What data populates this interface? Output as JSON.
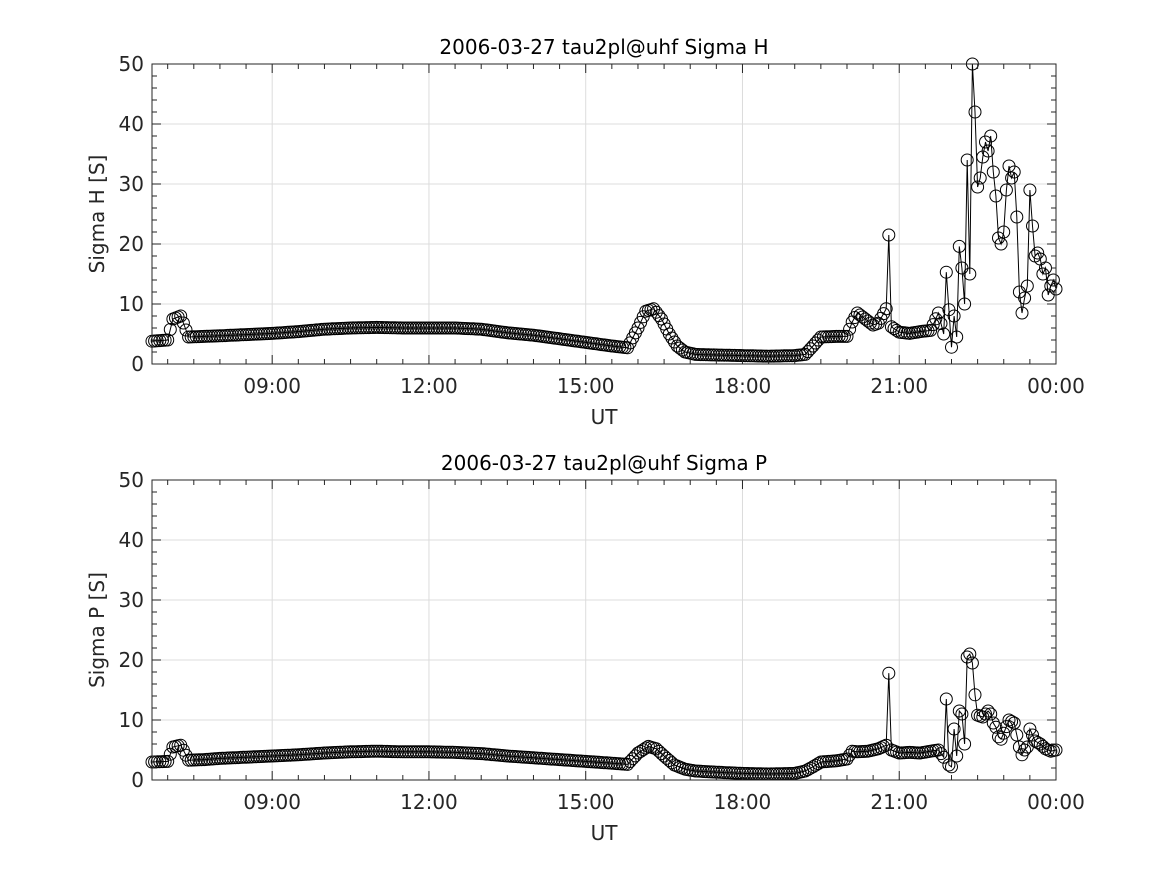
{
  "figure": {
    "background": "#ffffff",
    "axis_color": "#262626",
    "grid_color": "#dcdcdc",
    "marker_color": "#000000"
  },
  "chart_data": [
    {
      "type": "line",
      "title": "2006-03-27  tau2pl@uhf Sigma H",
      "xlabel": "UT",
      "ylabel": "Sigma H [S]",
      "xlim": [
        6.7,
        24.0
      ],
      "ylim": [
        0,
        50
      ],
      "xticks": [
        9,
        12,
        15,
        18,
        21,
        24
      ],
      "xtick_labels": [
        "09:00",
        "12:00",
        "15:00",
        "18:00",
        "21:00",
        "00:00"
      ],
      "yticks": [
        0,
        10,
        20,
        30,
        40,
        50
      ],
      "ytick_labels": [
        "0",
        "10",
        "20",
        "30",
        "40",
        "50"
      ],
      "grid": true,
      "marker": "open-circle",
      "series": [
        {
          "curve": [
            [
              6.7,
              3.8
            ],
            [
              7.0,
              4.0
            ],
            [
              7.1,
              7.5
            ],
            [
              7.25,
              8.0
            ],
            [
              7.4,
              4.5
            ],
            [
              7.7,
              4.6
            ],
            [
              8.0,
              4.7
            ],
            [
              8.5,
              4.9
            ],
            [
              9.0,
              5.1
            ],
            [
              9.5,
              5.4
            ],
            [
              10.0,
              5.8
            ],
            [
              10.5,
              6.0
            ],
            [
              11.0,
              6.1
            ],
            [
              11.5,
              6.0
            ],
            [
              12.0,
              6.0
            ],
            [
              12.5,
              6.0
            ],
            [
              13.0,
              5.8
            ],
            [
              13.5,
              5.2
            ],
            [
              14.0,
              4.8
            ],
            [
              14.5,
              4.2
            ],
            [
              15.0,
              3.6
            ],
            [
              15.5,
              3.0
            ],
            [
              15.8,
              2.7
            ],
            [
              16.0,
              6.0
            ],
            [
              16.15,
              8.8
            ],
            [
              16.3,
              9.2
            ],
            [
              16.45,
              7.5
            ],
            [
              16.6,
              5.0
            ],
            [
              16.75,
              3.0
            ],
            [
              16.9,
              2.0
            ],
            [
              17.1,
              1.6
            ],
            [
              17.5,
              1.5
            ],
            [
              18.0,
              1.4
            ],
            [
              18.5,
              1.3
            ],
            [
              19.0,
              1.4
            ],
            [
              19.2,
              1.6
            ],
            [
              19.35,
              3.0
            ],
            [
              19.5,
              4.5
            ],
            [
              19.8,
              4.6
            ],
            [
              20.0,
              4.6
            ],
            [
              20.1,
              7.0
            ],
            [
              20.2,
              8.5
            ],
            [
              20.35,
              7.5
            ],
            [
              20.5,
              6.5
            ],
            [
              20.6,
              6.8
            ],
            [
              20.75,
              9.2
            ],
            [
              20.8,
              21.5
            ],
            [
              20.85,
              6.2
            ],
            [
              21.0,
              5.3
            ],
            [
              21.2,
              5.1
            ],
            [
              21.4,
              5.4
            ],
            [
              21.6,
              5.6
            ],
            [
              21.75,
              8.5
            ],
            [
              21.85,
              5.0
            ],
            [
              21.9,
              15.3
            ],
            [
              22.0,
              2.8
            ],
            [
              22.05,
              8.0
            ],
            [
              22.1,
              4.5
            ],
            [
              22.15,
              19.6
            ],
            [
              22.2,
              16.0
            ],
            [
              22.25,
              10.0
            ],
            [
              22.3,
              34.0
            ],
            [
              22.35,
              15.0
            ],
            [
              22.4,
              50.0
            ],
            [
              22.45,
              42.0
            ],
            [
              22.5,
              29.5
            ],
            [
              22.55,
              31.0
            ],
            [
              22.6,
              34.5
            ],
            [
              22.65,
              37.0
            ],
            [
              22.7,
              35.5
            ],
            [
              22.75,
              38.0
            ],
            [
              22.8,
              32.0
            ],
            [
              22.85,
              28.0
            ],
            [
              22.9,
              21.0
            ],
            [
              22.95,
              20.0
            ],
            [
              23.0,
              22.0
            ],
            [
              23.05,
              29.0
            ],
            [
              23.1,
              33.0
            ],
            [
              23.15,
              31.0
            ],
            [
              23.2,
              32.0
            ],
            [
              23.25,
              24.5
            ],
            [
              23.3,
              12.0
            ],
            [
              23.35,
              8.5
            ],
            [
              23.4,
              11.0
            ],
            [
              23.45,
              13.0
            ],
            [
              23.5,
              29.0
            ],
            [
              23.55,
              23.0
            ],
            [
              23.6,
              18.0
            ],
            [
              23.65,
              18.5
            ],
            [
              23.7,
              17.5
            ],
            [
              23.75,
              15.0
            ],
            [
              23.8,
              16.0
            ],
            [
              23.85,
              11.5
            ],
            [
              23.9,
              13.0
            ],
            [
              23.95,
              14.0
            ],
            [
              24.0,
              12.5
            ]
          ]
        }
      ]
    },
    {
      "type": "line",
      "title": "2006-03-27  tau2pl@uhf Sigma P",
      "xlabel": "UT",
      "ylabel": "Sigma P [S]",
      "xlim": [
        6.7,
        24.0
      ],
      "ylim": [
        0,
        50
      ],
      "xticks": [
        9,
        12,
        15,
        18,
        21,
        24
      ],
      "xtick_labels": [
        "09:00",
        "12:00",
        "15:00",
        "18:00",
        "21:00",
        "00:00"
      ],
      "yticks": [
        0,
        10,
        20,
        30,
        40,
        50
      ],
      "ytick_labels": [
        "0",
        "10",
        "20",
        "30",
        "40",
        "50"
      ],
      "grid": true,
      "marker": "open-circle",
      "series": [
        {
          "curve": [
            [
              6.7,
              3.0
            ],
            [
              7.0,
              3.1
            ],
            [
              7.1,
              5.5
            ],
            [
              7.25,
              5.8
            ],
            [
              7.4,
              3.3
            ],
            [
              7.7,
              3.4
            ],
            [
              8.0,
              3.6
            ],
            [
              8.5,
              3.8
            ],
            [
              9.0,
              4.0
            ],
            [
              9.5,
              4.2
            ],
            [
              10.0,
              4.5
            ],
            [
              10.5,
              4.7
            ],
            [
              11.0,
              4.8
            ],
            [
              11.5,
              4.7
            ],
            [
              12.0,
              4.7
            ],
            [
              12.5,
              4.6
            ],
            [
              13.0,
              4.4
            ],
            [
              13.5,
              4.0
            ],
            [
              14.0,
              3.7
            ],
            [
              14.5,
              3.4
            ],
            [
              15.0,
              3.1
            ],
            [
              15.5,
              2.8
            ],
            [
              15.8,
              2.6
            ],
            [
              16.0,
              4.5
            ],
            [
              16.2,
              5.6
            ],
            [
              16.35,
              5.2
            ],
            [
              16.5,
              4.0
            ],
            [
              16.7,
              2.5
            ],
            [
              16.9,
              1.8
            ],
            [
              17.1,
              1.5
            ],
            [
              17.5,
              1.3
            ],
            [
              18.0,
              1.1
            ],
            [
              18.5,
              1.0
            ],
            [
              19.0,
              1.1
            ],
            [
              19.2,
              1.5
            ],
            [
              19.35,
              2.2
            ],
            [
              19.5,
              3.0
            ],
            [
              19.8,
              3.2
            ],
            [
              20.0,
              3.5
            ],
            [
              20.1,
              4.8
            ],
            [
              20.2,
              4.7
            ],
            [
              20.4,
              4.8
            ],
            [
              20.6,
              5.2
            ],
            [
              20.75,
              5.8
            ],
            [
              20.8,
              17.8
            ],
            [
              20.85,
              5.0
            ],
            [
              21.0,
              4.5
            ],
            [
              21.2,
              4.6
            ],
            [
              21.4,
              4.5
            ],
            [
              21.6,
              4.8
            ],
            [
              21.75,
              5.0
            ],
            [
              21.85,
              3.8
            ],
            [
              21.9,
              13.5
            ],
            [
              21.95,
              2.5
            ],
            [
              22.0,
              2.2
            ],
            [
              22.05,
              8.5
            ],
            [
              22.1,
              4.0
            ],
            [
              22.15,
              11.5
            ],
            [
              22.2,
              11.0
            ],
            [
              22.25,
              6.0
            ],
            [
              22.3,
              20.5
            ],
            [
              22.35,
              21.0
            ],
            [
              22.4,
              19.5
            ],
            [
              22.45,
              14.2
            ],
            [
              22.5,
              10.8
            ],
            [
              22.6,
              10.5
            ],
            [
              22.7,
              11.5
            ],
            [
              22.75,
              11.0
            ],
            [
              22.8,
              9.5
            ],
            [
              22.85,
              8.8
            ],
            [
              22.9,
              7.2
            ],
            [
              22.95,
              6.8
            ],
            [
              23.0,
              7.8
            ],
            [
              23.1,
              10.0
            ],
            [
              23.2,
              9.5
            ],
            [
              23.3,
              5.5
            ],
            [
              23.35,
              4.2
            ],
            [
              23.4,
              5.0
            ],
            [
              23.45,
              5.5
            ],
            [
              23.5,
              8.5
            ],
            [
              23.55,
              7.5
            ],
            [
              23.6,
              6.5
            ],
            [
              23.7,
              6.0
            ],
            [
              23.8,
              5.2
            ],
            [
              23.9,
              4.8
            ],
            [
              24.0,
              5.0
            ]
          ]
        }
      ]
    }
  ]
}
